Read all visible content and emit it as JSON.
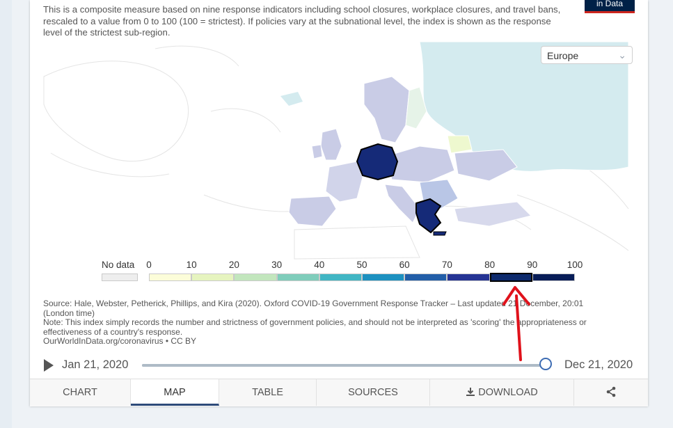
{
  "subtitle": "This is a composite measure based on nine response indicators including school closures, workplace closures, and travel bans, rescaled to a value from 0 to 100 (100 = strictest). If policies vary at the subnational level, the index is shown as the response level of the strictest sub-region.",
  "logo_text": "in Data",
  "region_select": {
    "value": "Europe",
    "icon": "chevron-down-icon"
  },
  "legend": {
    "no_data_label": "No data",
    "ticks": [
      "0",
      "10",
      "20",
      "30",
      "40",
      "50",
      "60",
      "70",
      "80",
      "90",
      "100"
    ],
    "colors": [
      "#fcfdd9",
      "#e6f4bf",
      "#c2e6bd",
      "#7fcdbb",
      "#41b6c4",
      "#1d91c0",
      "#225ea8",
      "#253494",
      "#0d2a6d",
      "#081d58"
    ],
    "no_data_color": "#eeeeee",
    "highlighted_bin": "80–90"
  },
  "source": {
    "line1": "Source: Hale, Webster, Petherick, Phillips, and Kira (2020). Oxford COVID-19 Government Response Tracker – Last updated 21 December, 20:01 (London time)",
    "line2": "Note: This index simply records the number and strictness of government policies, and should not be interpreted as 'scoring' the appropriateness or effectiveness of a country's response.",
    "line3": "OurWorldInData.org/coronavirus • CC BY"
  },
  "timeline": {
    "start_date": "Jan 21, 2020",
    "end_date": "Dec 21, 2020",
    "position_fraction": 1.0,
    "play_icon": "play-icon"
  },
  "tabs": [
    {
      "label": "CHART",
      "active": false
    },
    {
      "label": "MAP",
      "active": true
    },
    {
      "label": "TABLE",
      "active": false
    },
    {
      "label": "SOURCES",
      "active": false
    },
    {
      "label": "DOWNLOAD",
      "active": false,
      "icon": "download-icon"
    },
    {
      "label": "",
      "active": false,
      "icon": "share-icon"
    }
  ],
  "map": {
    "highlighted_countries": [
      "Germany",
      "Greece"
    ],
    "highlight_color": "#152a78"
  },
  "annotation_color": "#e0121b"
}
